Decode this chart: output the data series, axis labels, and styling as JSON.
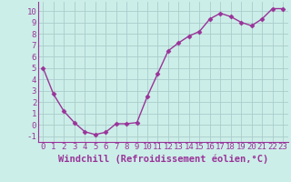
{
  "x": [
    0,
    1,
    2,
    3,
    4,
    5,
    6,
    7,
    8,
    9,
    10,
    11,
    12,
    13,
    14,
    15,
    16,
    17,
    18,
    19,
    20,
    21,
    22,
    23
  ],
  "y": [
    5,
    2.7,
    1.2,
    0.2,
    -0.6,
    -0.85,
    -0.65,
    0.1,
    0.1,
    0.2,
    2.5,
    4.5,
    6.5,
    7.2,
    7.8,
    8.2,
    9.3,
    9.8,
    9.5,
    9.0,
    8.7,
    9.3,
    10.2,
    10.2
  ],
  "line_color": "#993399",
  "marker": "D",
  "marker_size": 2.5,
  "bg_color": "#cceee8",
  "grid_color": "#aacccc",
  "xlabel": "Windchill (Refroidissement éolien,°C)",
  "xlim": [
    -0.5,
    23.5
  ],
  "ylim": [
    -1.5,
    10.8
  ],
  "yticks": [
    -1,
    0,
    1,
    2,
    3,
    4,
    5,
    6,
    7,
    8,
    9,
    10
  ],
  "xticks": [
    0,
    1,
    2,
    3,
    4,
    5,
    6,
    7,
    8,
    9,
    10,
    11,
    12,
    13,
    14,
    15,
    16,
    17,
    18,
    19,
    20,
    21,
    22,
    23
  ],
  "label_color": "#993399",
  "font_size": 6.5,
  "xlabel_fontsize": 7.5,
  "spine_color": "#993399",
  "linewidth": 1.0
}
